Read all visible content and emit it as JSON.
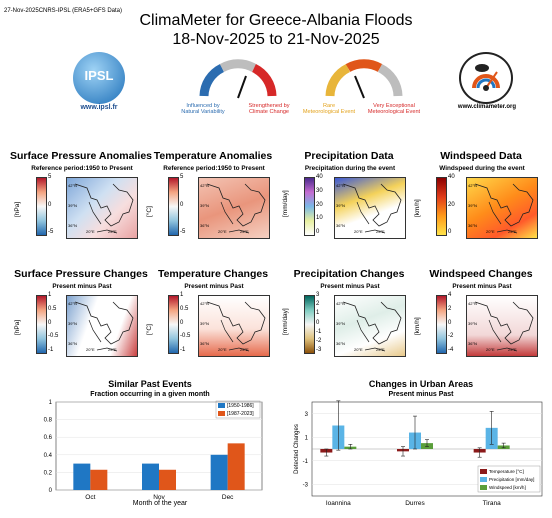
{
  "header": {
    "timestamp": "27-Nov-2025CNRS-IPSL (ERA5+GFS Data)",
    "title_line1": "ClimaMeter for Greece-Albania Floods",
    "title_line2": "18-Nov-2025 to 21-Nov-2025",
    "ipsl_logo_text": "IPSL",
    "ipsl_url": "www.ipsl.fr",
    "climameter_url": "www.climameter.org",
    "gauge1": {
      "left_label_1": "Influenced by",
      "left_label_2": "Natural Variability",
      "right_label_1": "Strengthened by",
      "right_label_2": "Climate Change",
      "left_color": "#2b6cb0",
      "right_color": "#d62828"
    },
    "gauge2": {
      "left_label_1": "Rare",
      "left_label_2": "Meteorological Event",
      "right_label_1": "Very Exceptional",
      "right_label_2": "Meteorological Event",
      "left_color": "#e3a21a",
      "right_color": "#d62828"
    }
  },
  "row1": [
    {
      "title": "Surface Pressure Anomalies",
      "subtitle": "Reference period:1950 to Present",
      "unit": "[hPa]",
      "ticks": [
        "5",
        "0",
        "-5"
      ]
    },
    {
      "title": "Temperature Anomalies",
      "subtitle": "Reference period:1950 to Present",
      "unit": "[°C]",
      "ticks": [
        "5",
        "0",
        "-5"
      ]
    },
    {
      "title": "Precipitation Data",
      "subtitle": "Precipitation during the event",
      "unit": "[mm/day]",
      "ticks": [
        "40",
        "30",
        "20",
        "10",
        "0"
      ]
    },
    {
      "title": "Windspeed Data",
      "subtitle": "Windspeed during the event",
      "unit": "[km/h]",
      "ticks": [
        "40",
        "20",
        "0"
      ]
    }
  ],
  "row2": [
    {
      "title": "Surface Pressure Changes",
      "subtitle": "Present minus Past",
      "unit": "[hPa]",
      "ticks": [
        "1",
        "0.5",
        "0",
        "-0.5",
        "-1"
      ]
    },
    {
      "title": "Temperature Changes",
      "subtitle": "Present minus Past",
      "unit": "[°C]",
      "ticks": [
        "1",
        "0.5",
        "0",
        "-0.5",
        "-1"
      ]
    },
    {
      "title": "Precipitation Changes",
      "subtitle": "Present minus Past",
      "unit": "[mm/day]",
      "ticks": [
        "3",
        "2",
        "1",
        "0",
        "-1",
        "-2",
        "-3"
      ]
    },
    {
      "title": "Windspeed Changes",
      "subtitle": "Present minus Past",
      "unit": "[km/h]",
      "ticks": [
        "4",
        "2",
        "0",
        "-2",
        "-4"
      ]
    }
  ],
  "map_ticks": {
    "lat": [
      "42°N",
      "39°N",
      "36°N"
    ],
    "lon": [
      "20°E",
      "25°E"
    ]
  },
  "chart_data": [
    {
      "type": "bar",
      "title": "Similar Past Events",
      "subtitle": "Fraction occurring in a given month",
      "xlabel": "Month of the year",
      "ylabel": "",
      "categories": [
        "Oct",
        "Nov",
        "Dec"
      ],
      "series": [
        {
          "name": "[1950-1986]",
          "values": [
            0.3,
            0.3,
            0.4
          ],
          "color": "#1f77c4"
        },
        {
          "name": "[1987-2023]",
          "values": [
            0.23,
            0.23,
            0.53
          ],
          "color": "#e0561a"
        }
      ],
      "ylim": [
        0,
        1
      ],
      "yticks": [
        "0",
        "0.2",
        "0.4",
        "0.6",
        "0.8",
        "1"
      ],
      "grid": true,
      "legend": "top-right"
    },
    {
      "type": "bar",
      "title": "Changes in Urban Areas",
      "subtitle": "Present minus Past",
      "xlabel": "",
      "ylabel": "Detected Changes",
      "categories": [
        "Ioannina",
        "Durres",
        "Tirana"
      ],
      "series": [
        {
          "name": "Temperature [°C]",
          "values": [
            -0.3,
            -0.2,
            -0.3
          ],
          "err": [
            0.3,
            0.4,
            0.4
          ],
          "color": "#8b1a1a"
        },
        {
          "name": "Precipitation [mm/day]",
          "values": [
            2.0,
            1.4,
            1.8
          ],
          "err": [
            2.1,
            1.4,
            1.4
          ],
          "color": "#5ab4e6"
        },
        {
          "name": "Windspeed [km/h]",
          "values": [
            0.2,
            0.5,
            0.3
          ],
          "err": [
            0.2,
            0.3,
            0.2
          ],
          "color": "#5a9e3a"
        }
      ],
      "ylim": [
        -4,
        4
      ],
      "yticks": [
        "-3",
        "-1",
        "1",
        "3"
      ],
      "grid": true,
      "legend": "bottom-right"
    }
  ]
}
